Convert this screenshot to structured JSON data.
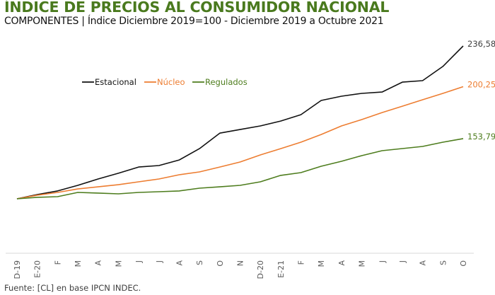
{
  "header": {
    "title": "ÍNDICE DE PRECIOS AL CONSUMIDOR NACIONAL",
    "subtitle": "COMPONENTES | Índice Diciembre 2019=100 - Diciembre 2019 a Octubre 2021"
  },
  "footer": {
    "source": "Fuente: [CL] en base IPCN INDEC."
  },
  "chart_data": {
    "type": "line",
    "title": "ÍNDICE DE PRECIOS AL CONSUMIDOR NACIONAL",
    "subtitle": "COMPONENTES | Índice Diciembre 2019=100 - Diciembre 2019 a Octubre 2021",
    "xlabel": "",
    "ylabel": "",
    "ylim": [
      100,
      236.58
    ],
    "grid": false,
    "legend_position": "top-left",
    "categories": [
      "D-19",
      "E-20",
      "F",
      "M",
      "A",
      "M",
      "J",
      "J",
      "A",
      "S",
      "O",
      "N",
      "D-20",
      "E-21",
      "F",
      "M",
      "A",
      "M",
      "J",
      "J",
      "A",
      "S",
      "O"
    ],
    "series": [
      {
        "name": "Estacional",
        "color": "#111111",
        "values": [
          100,
          103.8,
          107.0,
          112.0,
          117.7,
          122.8,
          128.4,
          129.7,
          134.7,
          144.8,
          158.7,
          161.9,
          165.1,
          169.5,
          175.2,
          187.9,
          191.7,
          194.2,
          195.4,
          204.3,
          205.6,
          218.3,
          236.58
        ],
        "end_label": "236,58"
      },
      {
        "name": "Núcleo",
        "color": "#ed7d31",
        "values": [
          100,
          103.2,
          105.7,
          108.8,
          110.7,
          112.6,
          115.2,
          117.7,
          121.5,
          124.0,
          128.4,
          132.9,
          139.2,
          144.8,
          150.6,
          157.5,
          165.1,
          170.8,
          177.1,
          182.8,
          188.5,
          194.2,
          200.25
        ],
        "end_label": "200,25"
      },
      {
        "name": "Regulados",
        "color": "#4e7d1e",
        "values": [
          100,
          101.3,
          101.9,
          105.7,
          105.1,
          104.4,
          105.7,
          106.3,
          107.0,
          109.5,
          110.7,
          112.0,
          115.2,
          120.9,
          123.4,
          129.1,
          133.5,
          138.6,
          143.0,
          144.9,
          146.8,
          150.6,
          153.79
        ],
        "end_label": "153,79"
      }
    ]
  }
}
